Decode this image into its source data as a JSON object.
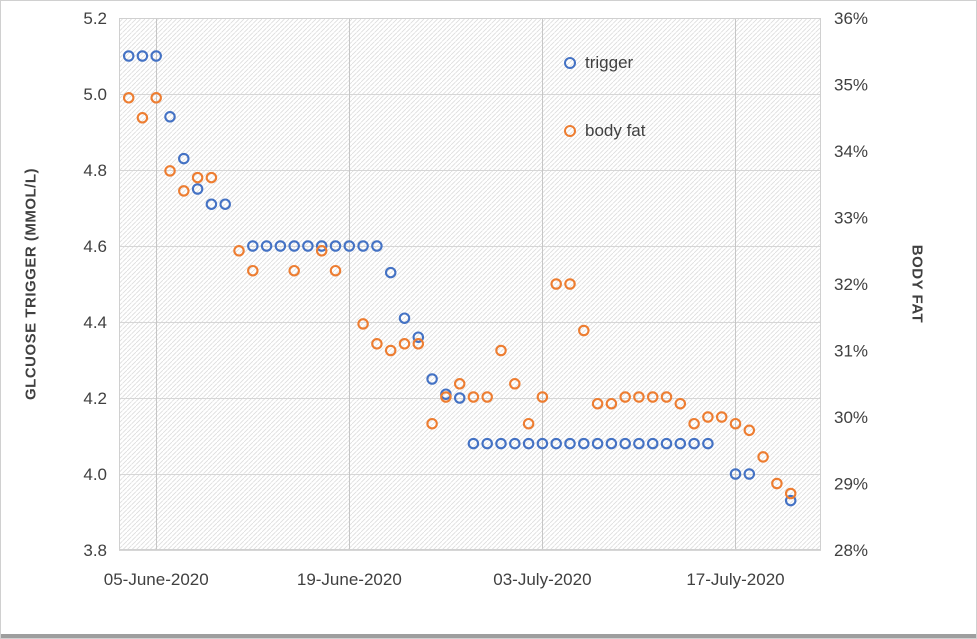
{
  "window": {
    "background": "#ffffff",
    "border_color": "#d0d0d0"
  },
  "chart_data": {
    "type": "scatter",
    "title": "",
    "grid": true,
    "plot_fill_pattern": "diagonal-hatch",
    "x_axis": {
      "tick_labels": [
        "05-June-2020",
        "19-June-2020",
        "03-July-2020",
        "17-July-2020"
      ],
      "tick_days": [
        0,
        14,
        28,
        42
      ],
      "domain_days": [
        -2.7,
        48.2
      ]
    },
    "y_left": {
      "title": "GLCUOSE TRIGGER (MMOL/L)",
      "tick_labels": [
        "3.8",
        "4.0",
        "4.2",
        "4.4",
        "4.6",
        "4.8",
        "5.0",
        "5.2"
      ],
      "range": [
        3.8,
        5.2
      ]
    },
    "y_right": {
      "title": "BODY FAT",
      "tick_labels": [
        "28%",
        "29%",
        "30%",
        "31%",
        "32%",
        "33%",
        "34%",
        "35%",
        "36%"
      ],
      "range": [
        28,
        36
      ]
    },
    "legend": [
      {
        "label": "trigger",
        "color": "#4472C4"
      },
      {
        "label": "body fat",
        "color": "#ED7D31"
      }
    ],
    "series": [
      {
        "name": "trigger",
        "axis": "left",
        "color": "#4472C4",
        "points": [
          [
            -2,
            5.1
          ],
          [
            -1,
            5.1
          ],
          [
            0,
            5.1
          ],
          [
            1,
            4.94
          ],
          [
            2,
            4.83
          ],
          [
            3,
            4.75
          ],
          [
            4,
            4.71
          ],
          [
            5,
            4.71
          ],
          [
            7,
            4.6
          ],
          [
            8,
            4.6
          ],
          [
            9,
            4.6
          ],
          [
            10,
            4.6
          ],
          [
            11,
            4.6
          ],
          [
            12,
            4.6
          ],
          [
            13,
            4.6
          ],
          [
            14,
            4.6
          ],
          [
            15,
            4.6
          ],
          [
            16,
            4.6
          ],
          [
            17,
            4.53
          ],
          [
            18,
            4.41
          ],
          [
            19,
            4.36
          ],
          [
            20,
            4.25
          ],
          [
            21,
            4.21
          ],
          [
            22,
            4.2
          ],
          [
            23,
            4.08
          ],
          [
            24,
            4.08
          ],
          [
            25,
            4.08
          ],
          [
            26,
            4.08
          ],
          [
            27,
            4.08
          ],
          [
            28,
            4.08
          ],
          [
            29,
            4.08
          ],
          [
            30,
            4.08
          ],
          [
            31,
            4.08
          ],
          [
            32,
            4.08
          ],
          [
            33,
            4.08
          ],
          [
            34,
            4.08
          ],
          [
            35,
            4.08
          ],
          [
            36,
            4.08
          ],
          [
            37,
            4.08
          ],
          [
            38,
            4.08
          ],
          [
            39,
            4.08
          ],
          [
            40,
            4.08
          ],
          [
            42,
            4.0
          ],
          [
            43,
            4.0
          ],
          [
            46,
            3.93
          ]
        ]
      },
      {
        "name": "body fat",
        "axis": "right",
        "color": "#ED7D31",
        "points": [
          [
            -2,
            34.8
          ],
          [
            -1,
            34.5
          ],
          [
            0,
            34.8
          ],
          [
            1,
            33.7
          ],
          [
            2,
            33.4
          ],
          [
            3,
            33.6
          ],
          [
            4,
            33.6
          ],
          [
            6,
            32.5
          ],
          [
            7,
            32.2
          ],
          [
            10,
            32.2
          ],
          [
            12,
            32.5
          ],
          [
            13,
            32.2
          ],
          [
            15,
            31.4
          ],
          [
            16,
            31.1
          ],
          [
            17,
            31.0
          ],
          [
            18,
            31.1
          ],
          [
            19,
            31.1
          ],
          [
            20,
            29.9
          ],
          [
            21,
            30.3
          ],
          [
            22,
            30.5
          ],
          [
            23,
            30.3
          ],
          [
            24,
            30.3
          ],
          [
            25,
            31.0
          ],
          [
            26,
            30.5
          ],
          [
            27,
            29.9
          ],
          [
            28,
            30.3
          ],
          [
            29,
            32.0
          ],
          [
            30,
            32.0
          ],
          [
            31,
            31.3
          ],
          [
            32,
            30.2
          ],
          [
            33,
            30.2
          ],
          [
            34,
            30.3
          ],
          [
            35,
            30.3
          ],
          [
            36,
            30.3
          ],
          [
            37,
            30.3
          ],
          [
            38,
            30.2
          ],
          [
            39,
            29.9
          ],
          [
            40,
            30.0
          ],
          [
            41,
            30.0
          ],
          [
            42,
            29.9
          ],
          [
            43,
            29.8
          ],
          [
            44,
            29.4
          ],
          [
            45,
            29.0
          ],
          [
            46,
            28.85
          ]
        ]
      }
    ]
  }
}
